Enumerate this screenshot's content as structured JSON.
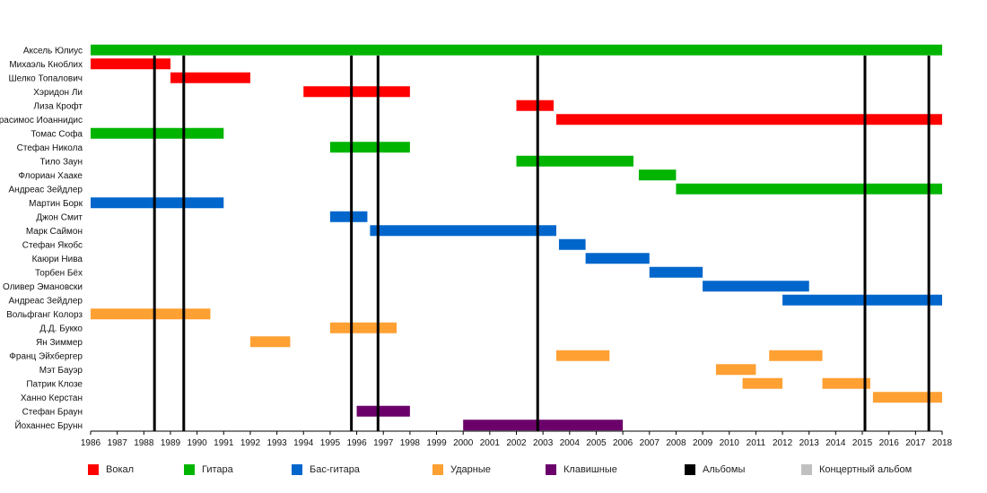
{
  "chart_data": {
    "type": "timeline",
    "title": "",
    "xlim": [
      1986,
      2018
    ],
    "x_ticks": [
      "1986",
      "1987",
      "1988",
      "1989",
      "1990",
      "1991",
      "1992",
      "1993",
      "1994",
      "1995",
      "1996",
      "1997",
      "1998",
      "1999",
      "2000",
      "2001",
      "2002",
      "2003",
      "2004",
      "2005",
      "2006",
      "2007",
      "2008",
      "2009",
      "2010",
      "2011",
      "2012",
      "2013",
      "2014",
      "2015",
      "2016",
      "2017",
      "2018"
    ],
    "colors": {
      "vocals": "#ff0000",
      "guitar": "#00b400",
      "bass": "#0066cc",
      "drums": "#ffa033",
      "keys": "#6b006b",
      "albums": "#000000",
      "live": "#c0c0c0"
    },
    "members": [
      {
        "name": "Аксель Юлиус",
        "bars": [
          {
            "role": "guitar",
            "start": 1986.0,
            "end": 2018.0
          }
        ]
      },
      {
        "name": "Михаэль Кноблих",
        "bars": [
          {
            "role": "vocals",
            "start": 1986.0,
            "end": 1989.0
          }
        ]
      },
      {
        "name": "Шелко Топалович",
        "bars": [
          {
            "role": "vocals",
            "start": 1989.0,
            "end": 1992.0
          }
        ]
      },
      {
        "name": "Хэридон Ли",
        "bars": [
          {
            "role": "vocals",
            "start": 1994.0,
            "end": 1998.0
          }
        ]
      },
      {
        "name": "Лиза Крофт",
        "bars": [
          {
            "role": "vocals",
            "start": 2002.0,
            "end": 2003.4
          }
        ]
      },
      {
        "name": "Герасимос Иоаннидис",
        "bars": [
          {
            "role": "vocals",
            "start": 2003.5,
            "end": 2018.0
          }
        ]
      },
      {
        "name": "Томас Софа",
        "bars": [
          {
            "role": "guitar",
            "start": 1986.0,
            "end": 1991.0
          }
        ]
      },
      {
        "name": "Стефан Никола",
        "bars": [
          {
            "role": "guitar",
            "start": 1995.0,
            "end": 1998.0
          }
        ]
      },
      {
        "name": "Тило Заун",
        "bars": [
          {
            "role": "guitar",
            "start": 2002.0,
            "end": 2006.4
          }
        ]
      },
      {
        "name": "Флориан Хааке",
        "bars": [
          {
            "role": "guitar",
            "start": 2006.6,
            "end": 2008.0
          }
        ]
      },
      {
        "name": "Андреас Зейдлер",
        "bars": [
          {
            "role": "guitar",
            "start": 2008.0,
            "end": 2018.0
          }
        ]
      },
      {
        "name": "Мартин Борк",
        "bars": [
          {
            "role": "bass",
            "start": 1986.0,
            "end": 1991.0
          }
        ]
      },
      {
        "name": "Джон Смит",
        "bars": [
          {
            "role": "bass",
            "start": 1995.0,
            "end": 1996.4
          }
        ]
      },
      {
        "name": "Марк Саймон",
        "bars": [
          {
            "role": "bass",
            "start": 1996.5,
            "end": 2003.5
          }
        ]
      },
      {
        "name": "Стефан Якобс",
        "bars": [
          {
            "role": "bass",
            "start": 2003.6,
            "end": 2004.6
          }
        ]
      },
      {
        "name": "Каюри Нива",
        "bars": [
          {
            "role": "bass",
            "start": 2004.6,
            "end": 2007.0
          }
        ]
      },
      {
        "name": "Торбен Бёх",
        "bars": [
          {
            "role": "bass",
            "start": 2007.0,
            "end": 2009.0
          }
        ]
      },
      {
        "name": "Оливер Эмановски",
        "bars": [
          {
            "role": "bass",
            "start": 2009.0,
            "end": 2013.0
          }
        ]
      },
      {
        "name": "Андреас Зейдлер",
        "bars": [
          {
            "role": "bass",
            "start": 2012.0,
            "end": 2018.0
          }
        ]
      },
      {
        "name": "Вольфганг Колорз",
        "bars": [
          {
            "role": "drums",
            "start": 1986.0,
            "end": 1990.5
          }
        ]
      },
      {
        "name": "Д.Д. Букко",
        "bars": [
          {
            "role": "drums",
            "start": 1995.0,
            "end": 1997.5
          }
        ]
      },
      {
        "name": "Ян Зиммер",
        "bars": [
          {
            "role": "drums",
            "start": 1992.0,
            "end": 1993.5
          }
        ]
      },
      {
        "name": "Франц Эйхбергер",
        "bars": [
          {
            "role": "drums",
            "start": 2003.5,
            "end": 2005.5
          },
          {
            "role": "drums",
            "start": 2011.5,
            "end": 2013.5
          }
        ]
      },
      {
        "name": "Мэт Бауэр",
        "bars": [
          {
            "role": "drums",
            "start": 2009.5,
            "end": 2011.0
          }
        ]
      },
      {
        "name": "Патрик Клозе",
        "bars": [
          {
            "role": "drums",
            "start": 2010.5,
            "end": 2012.0
          },
          {
            "role": "drums",
            "start": 2013.5,
            "end": 2015.3
          }
        ]
      },
      {
        "name": "Ханно Керстан",
        "bars": [
          {
            "role": "drums",
            "start": 2015.4,
            "end": 2018.0
          }
        ]
      },
      {
        "name": "Стефан Браун",
        "bars": [
          {
            "role": "keys",
            "start": 1996.0,
            "end": 1998.0
          }
        ]
      },
      {
        "name": "Йоханнес Брунн",
        "bars": [
          {
            "role": "keys",
            "start": 2000.0,
            "end": 2006.0
          }
        ]
      }
    ],
    "albums": [
      1988.4,
      1989.5,
      1995.8,
      1996.8,
      2002.8,
      2015.1,
      2017.5
    ],
    "legend": [
      {
        "role": "vocals",
        "label": "Вокал"
      },
      {
        "role": "guitar",
        "label": "Гитара"
      },
      {
        "role": "bass",
        "label": "Бас-гитара"
      },
      {
        "role": "drums",
        "label": "Ударные"
      },
      {
        "role": "keys",
        "label": "Клавишные"
      },
      {
        "role": "albums",
        "label": "Альбомы"
      },
      {
        "role": "live",
        "label": "Концертный альбом"
      }
    ]
  }
}
